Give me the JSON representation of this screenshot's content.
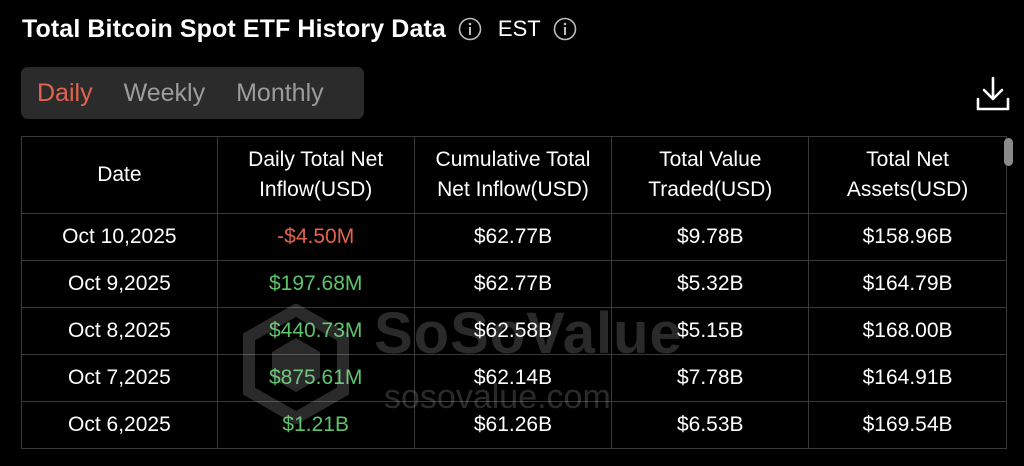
{
  "header": {
    "title": "Total Bitcoin Spot ETF History Data",
    "timezone": "EST"
  },
  "tabs": [
    {
      "label": "Daily",
      "active": true
    },
    {
      "label": "Weekly",
      "active": false
    },
    {
      "label": "Monthly",
      "active": false
    }
  ],
  "table": {
    "columns": [
      {
        "line1": "Date",
        "line2": ""
      },
      {
        "line1": "Daily Total Net",
        "line2": "Inflow(USD)"
      },
      {
        "line1": "Cumulative Total",
        "line2": "Net Inflow(USD)"
      },
      {
        "line1": "Total Value",
        "line2": "Traded(USD)"
      },
      {
        "line1": "Total Net",
        "line2": "Assets(USD)"
      }
    ],
    "rows": [
      {
        "date": "Oct 10,2025",
        "inflow": "-$4.50M",
        "cumulative": "$62.77B",
        "traded": "$9.78B",
        "assets": "$158.96B"
      },
      {
        "date": "Oct 9,2025",
        "inflow": "$197.68M",
        "cumulative": "$62.77B",
        "traded": "$5.32B",
        "assets": "$164.79B"
      },
      {
        "date": "Oct 8,2025",
        "inflow": "$440.73M",
        "cumulative": "$62.58B",
        "traded": "$5.15B",
        "assets": "$168.00B"
      },
      {
        "date": "Oct 7,2025",
        "inflow": "$875.61M",
        "cumulative": "$62.14B",
        "traded": "$7.78B",
        "assets": "$164.91B"
      },
      {
        "date": "Oct 6,2025",
        "inflow": "$1.21B",
        "cumulative": "$61.26B",
        "traded": "$6.53B",
        "assets": "$169.54B"
      }
    ]
  },
  "watermark": {
    "name": "SoSoValue",
    "url": "sosovalue.com"
  },
  "colors": {
    "background": "#000000",
    "accent_active_tab": "#e4634f",
    "negative": "#e4634f",
    "positive": "#5cc46b",
    "muted": "#9c9c9c",
    "border": "#3a3a3a"
  },
  "icons": {
    "title_info": "info-icon",
    "timezone_info": "info-icon",
    "download": "download-icon"
  }
}
